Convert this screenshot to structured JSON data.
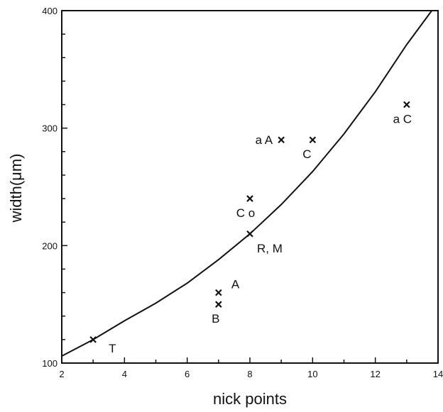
{
  "chart_data": {
    "type": "scatter",
    "title": "",
    "xlabel": "nick  points",
    "ylabel": "width(μm)",
    "xlim": [
      2,
      14
    ],
    "ylim": [
      100,
      400
    ],
    "xticks": [
      2,
      4,
      6,
      8,
      10,
      12,
      14
    ],
    "yticks": [
      100,
      200,
      300,
      400
    ],
    "xtick_labels": [
      "2",
      "4",
      "6",
      "8",
      "10",
      "12",
      "14"
    ],
    "ytick_labels": [
      "100",
      "200",
      "300",
      "400"
    ],
    "grid": false,
    "points": [
      {
        "label": "T",
        "x": 3,
        "y": 120
      },
      {
        "label": "B",
        "x": 7,
        "y": 150
      },
      {
        "label": "A",
        "x": 7,
        "y": 160
      },
      {
        "label": "R, M",
        "x": 8,
        "y": 210
      },
      {
        "label": "C o",
        "x": 8,
        "y": 240
      },
      {
        "label": "a A",
        "x": 9,
        "y": 290
      },
      {
        "label": "C",
        "x": 10,
        "y": 290
      },
      {
        "label": "a C",
        "x": 13,
        "y": 320
      }
    ],
    "curve": {
      "x": [
        2,
        3,
        4,
        5,
        6,
        7,
        8,
        9,
        10,
        11,
        12,
        13,
        13.8
      ],
      "y": [
        106,
        120,
        136,
        151,
        168,
        188,
        210,
        235,
        263,
        295,
        331,
        371,
        400
      ]
    }
  }
}
